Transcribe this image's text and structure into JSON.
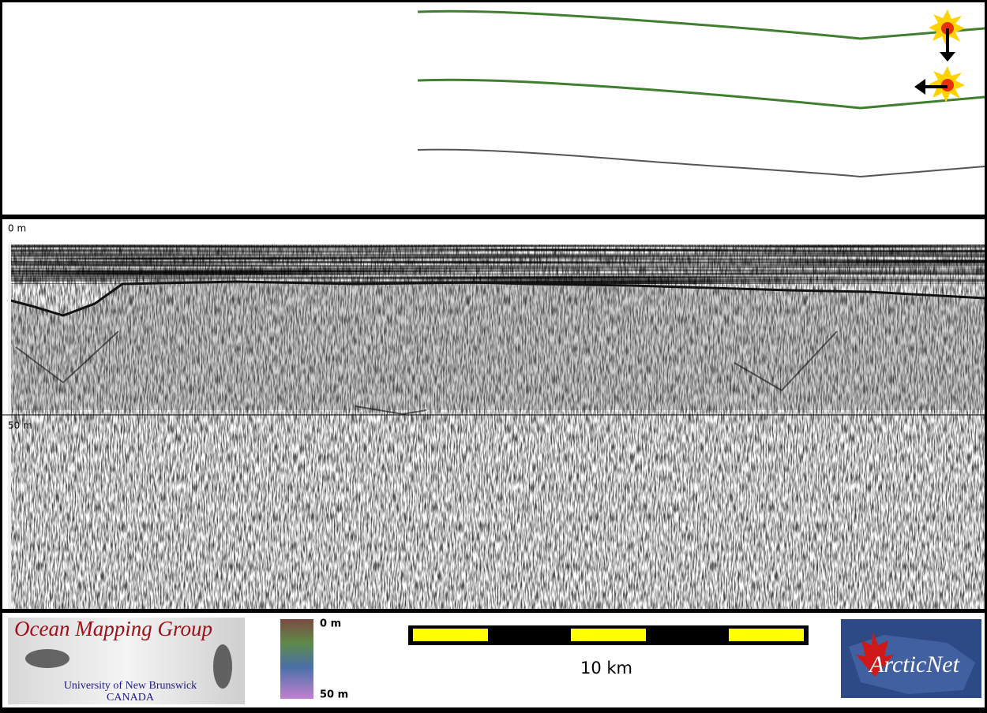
{
  "profile_panel": {
    "depth_labels": [
      "0 m",
      "50 m"
    ]
  },
  "footer": {
    "logo": {
      "title": "Ocean Mapping Group",
      "university": "University of New Brunswick",
      "country": "CANADA"
    },
    "colorbar": {
      "top_label": "0 m",
      "bottom_label": "50 m"
    },
    "scale_bar": {
      "label": "10 km"
    },
    "partner_logo": {
      "name": "ArcticNet"
    }
  }
}
